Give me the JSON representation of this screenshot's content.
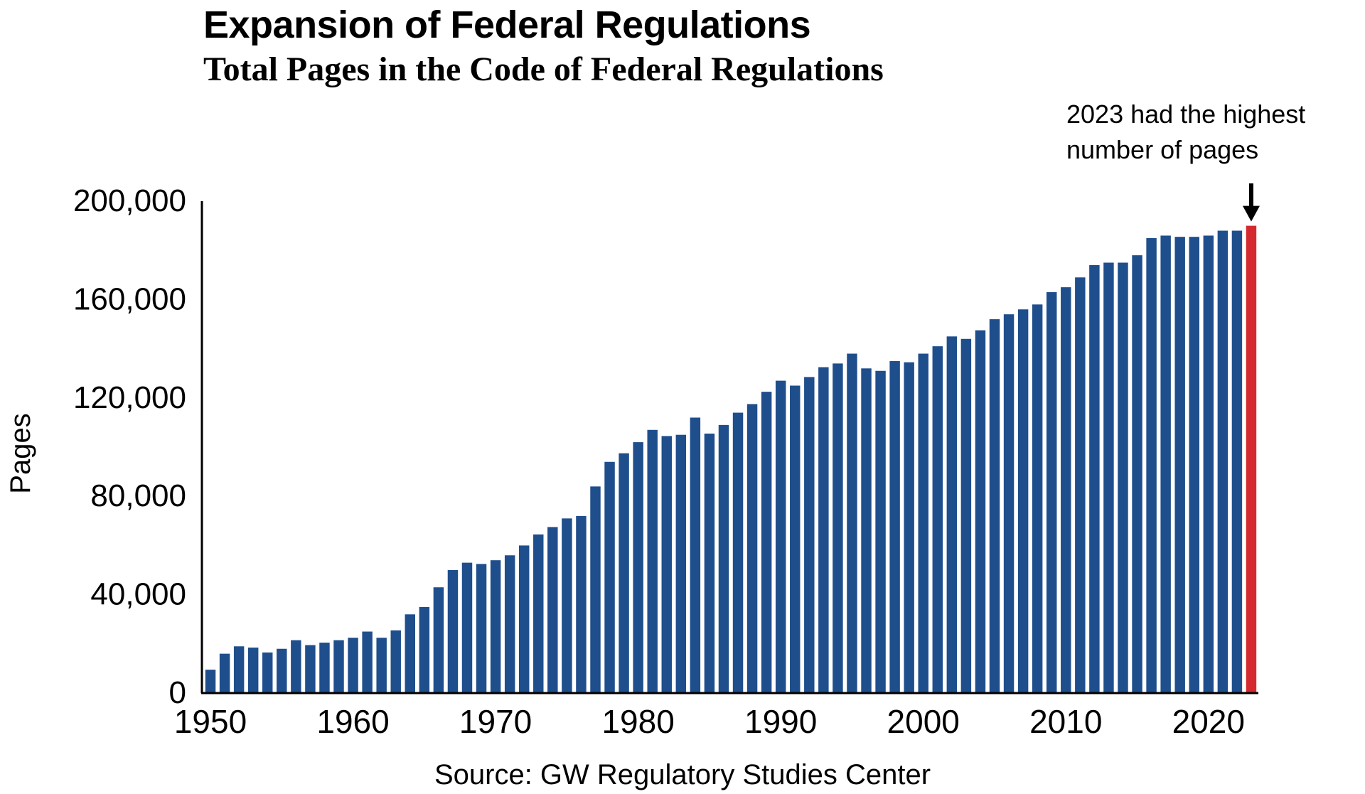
{
  "chart_data": {
    "type": "bar",
    "title": "Expansion of Federal Regulations",
    "subtitle": "Total Pages in the Code of Federal Regulations",
    "ylabel": "Pages",
    "xlabel": "",
    "source": "Source: GW Regulatory Studies Center",
    "annotation": "2023 had the highest number of pages",
    "annotation_lines": [
      "2023 had the highest",
      "number of pages"
    ],
    "annotation_year": 2023,
    "ylim": [
      0,
      200000
    ],
    "y_ticks": [
      0,
      40000,
      80000,
      120000,
      160000,
      200000
    ],
    "y_tick_labels": [
      "0",
      "40,000",
      "80,000",
      "120,000",
      "160,000",
      "200,000"
    ],
    "x_ticks": [
      1950,
      1960,
      1970,
      1980,
      1990,
      2000,
      2010,
      2020
    ],
    "x_tick_labels": [
      "1950",
      "1960",
      "1970",
      "1980",
      "1990",
      "2000",
      "2010",
      "2020"
    ],
    "grid": false,
    "colors": {
      "bar": "#1f4e8c",
      "highlight": "#d42a2f"
    },
    "categories": [
      1950,
      1951,
      1952,
      1953,
      1954,
      1955,
      1956,
      1957,
      1958,
      1959,
      1960,
      1961,
      1962,
      1963,
      1964,
      1965,
      1966,
      1967,
      1968,
      1969,
      1970,
      1971,
      1972,
      1973,
      1974,
      1975,
      1976,
      1977,
      1978,
      1979,
      1980,
      1981,
      1982,
      1983,
      1984,
      1985,
      1986,
      1987,
      1988,
      1989,
      1990,
      1991,
      1992,
      1993,
      1994,
      1995,
      1996,
      1997,
      1998,
      1999,
      2000,
      2001,
      2002,
      2003,
      2004,
      2005,
      2006,
      2007,
      2008,
      2009,
      2010,
      2011,
      2012,
      2013,
      2014,
      2015,
      2016,
      2017,
      2018,
      2019,
      2020,
      2021,
      2022,
      2023
    ],
    "values": [
      9500,
      16000,
      19000,
      18500,
      16500,
      18000,
      21500,
      19500,
      20500,
      21500,
      22500,
      25000,
      22500,
      25500,
      32000,
      35000,
      43000,
      50000,
      53000,
      52500,
      54000,
      56000,
      60000,
      64500,
      67500,
      71000,
      72000,
      84000,
      94000,
      97500,
      102000,
      107000,
      104500,
      105000,
      112000,
      105500,
      109000,
      114000,
      117500,
      122500,
      127000,
      125000,
      128500,
      132500,
      134000,
      138000,
      132000,
      131000,
      135000,
      134500,
      138000,
      141000,
      145000,
      144000,
      147500,
      152000,
      154000,
      156000,
      158000,
      163000,
      165000,
      169000,
      174000,
      175000,
      175000,
      178000,
      185000,
      186000,
      185500,
      185500,
      186000,
      188000,
      188000,
      190000
    ]
  }
}
